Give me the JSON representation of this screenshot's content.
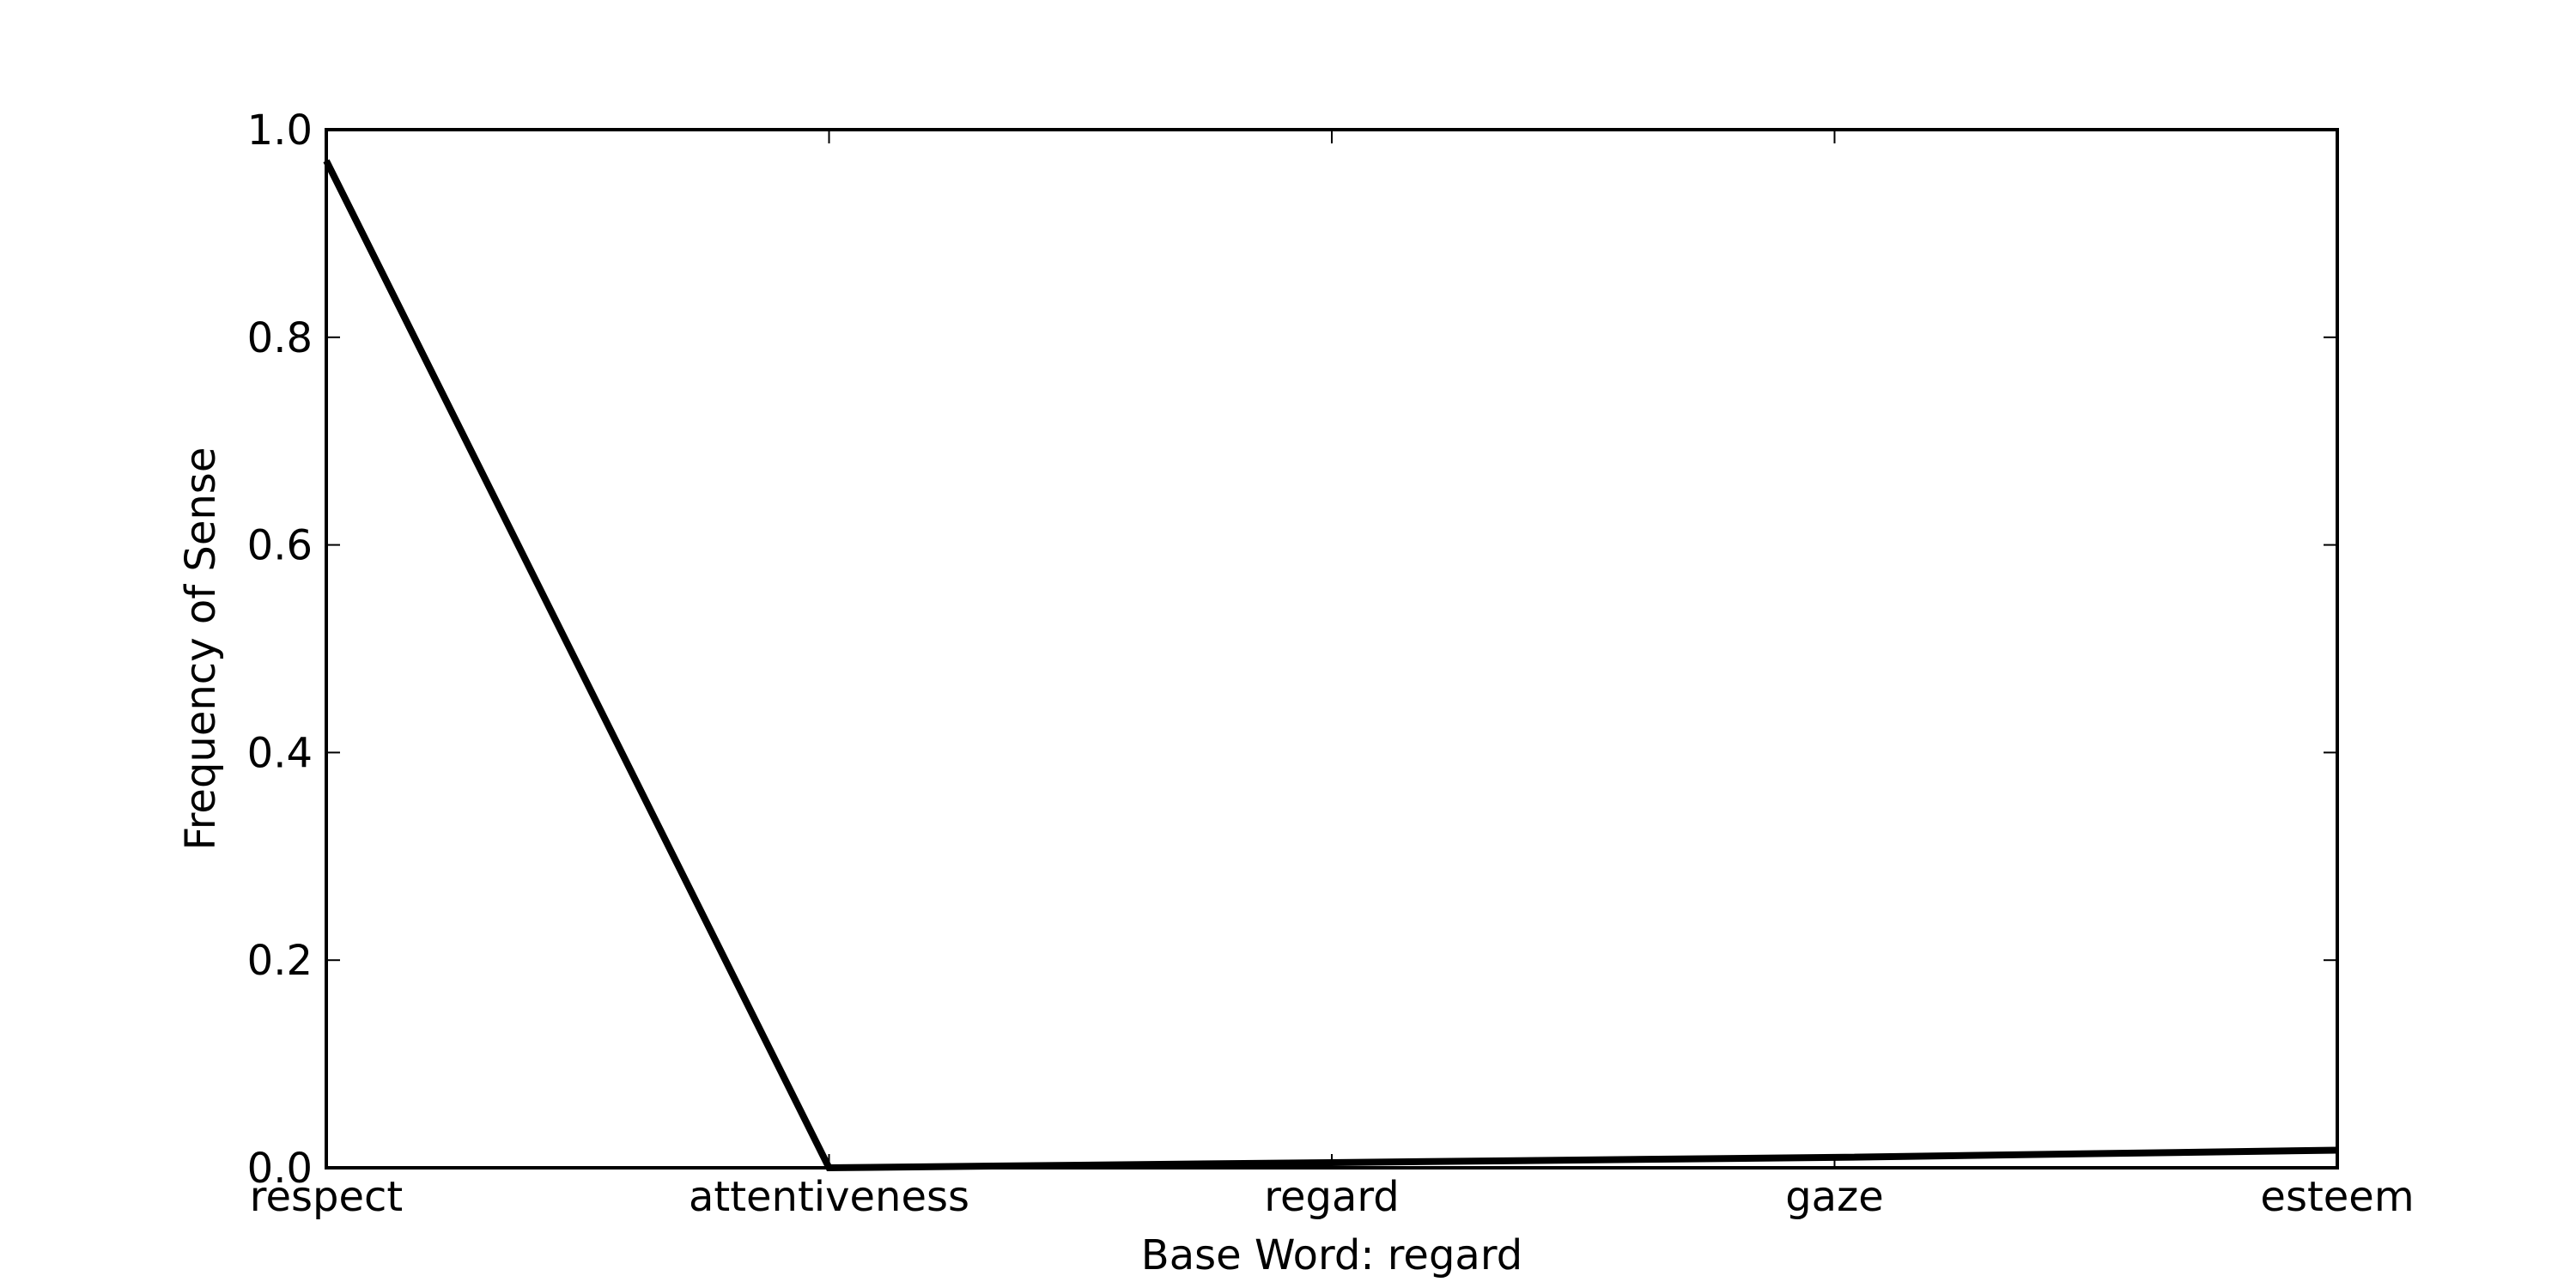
{
  "chart_data": {
    "type": "line",
    "title": "",
    "xlabel": "Base Word: regard",
    "ylabel": "Frequency of Sense",
    "categories": [
      "respect",
      "attentiveness",
      "regard",
      "gaze",
      "esteem"
    ],
    "series": [
      {
        "values": [
          0.97,
          0.0,
          0.005,
          0.01,
          0.017
        ]
      }
    ],
    "ylim": [
      0.0,
      1.0
    ],
    "yticks": [
      "0.0",
      "0.2",
      "0.4",
      "0.6",
      "0.8",
      "1.0"
    ],
    "grid": false,
    "line_color": "#000000"
  }
}
